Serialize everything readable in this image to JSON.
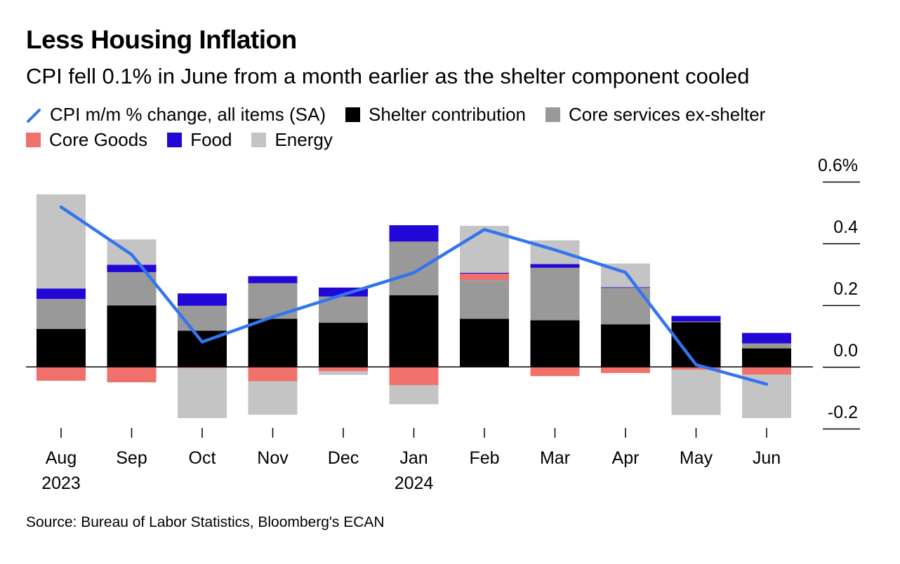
{
  "title": "Less Housing Inflation",
  "subtitle": "CPI fell 0.1% in June from a month earlier as the shelter component cooled",
  "source": "Source: Bureau of Labor Statistics, Bloomberg's ECAN",
  "chart_data": {
    "type": "bar",
    "stacked": true,
    "categories": [
      "Aug",
      "Sep",
      "Oct",
      "Nov",
      "Dec",
      "Jan",
      "Feb",
      "Mar",
      "Apr",
      "May",
      "Jun"
    ],
    "category_sublabels": [
      "2023",
      "",
      "",
      "",
      "",
      "2024",
      "",
      "",
      "",
      "",
      ""
    ],
    "ylim": [
      -0.2,
      0.6
    ],
    "yticks": [
      {
        "value": 0.6,
        "label": "0.6%"
      },
      {
        "value": 0.4,
        "label": "0.4"
      },
      {
        "value": 0.2,
        "label": "0.2"
      },
      {
        "value": 0.0,
        "label": "0.0"
      },
      {
        "value": -0.2,
        "label": "-0.2"
      }
    ],
    "y_axis_position": "right",
    "grid": false,
    "legend_position": "top-left",
    "series": [
      {
        "name": "Shelter contribution",
        "kind": "bar",
        "color": "#000000",
        "values": [
          0.123,
          0.199,
          0.117,
          0.156,
          0.143,
          0.232,
          0.156,
          0.151,
          0.138,
          0.145,
          0.06
        ]
      },
      {
        "name": "Core services ex-shelter",
        "kind": "bar",
        "color": "#999999",
        "values": [
          0.097,
          0.108,
          0.081,
          0.115,
          0.085,
          0.174,
          0.125,
          0.17,
          0.118,
          0.002,
          0.016
        ]
      },
      {
        "name": "Core Goods",
        "kind": "bar",
        "color": "#f0716c",
        "values": [
          -0.045,
          -0.05,
          -0.004,
          -0.047,
          -0.014,
          -0.059,
          0.021,
          -0.03,
          -0.02,
          -0.009,
          -0.025
        ]
      },
      {
        "name": "Food",
        "kind": "bar",
        "color": "#2208d6",
        "values": [
          0.034,
          0.024,
          0.04,
          0.023,
          0.029,
          0.053,
          0.003,
          0.012,
          0.002,
          0.018,
          0.034
        ]
      },
      {
        "name": "Energy",
        "kind": "bar",
        "color": "#c4c4c4",
        "values": [
          0.305,
          0.082,
          -0.162,
          -0.108,
          -0.012,
          -0.062,
          0.152,
          0.077,
          0.077,
          -0.147,
          -0.141
        ]
      },
      {
        "name": "CPI m/m % change, all items (SA)",
        "kind": "line",
        "color": "#3574f0",
        "values": [
          0.518,
          0.364,
          0.081,
          0.162,
          0.234,
          0.305,
          0.445,
          0.379,
          0.306,
          0.007,
          -0.056
        ]
      }
    ]
  },
  "legend": {
    "rows": [
      [
        {
          "label": "CPI m/m % change, all items (SA)",
          "kind": "line",
          "color": "#3574f0"
        },
        {
          "label": "Shelter contribution",
          "kind": "box",
          "color": "#000000"
        },
        {
          "label": "Core services ex-shelter",
          "kind": "box",
          "color": "#999999"
        }
      ],
      [
        {
          "label": "Core Goods",
          "kind": "box",
          "color": "#f0716c"
        },
        {
          "label": "Food",
          "kind": "box",
          "color": "#2208d6"
        },
        {
          "label": "Energy",
          "kind": "box",
          "color": "#c4c4c4"
        }
      ]
    ]
  }
}
